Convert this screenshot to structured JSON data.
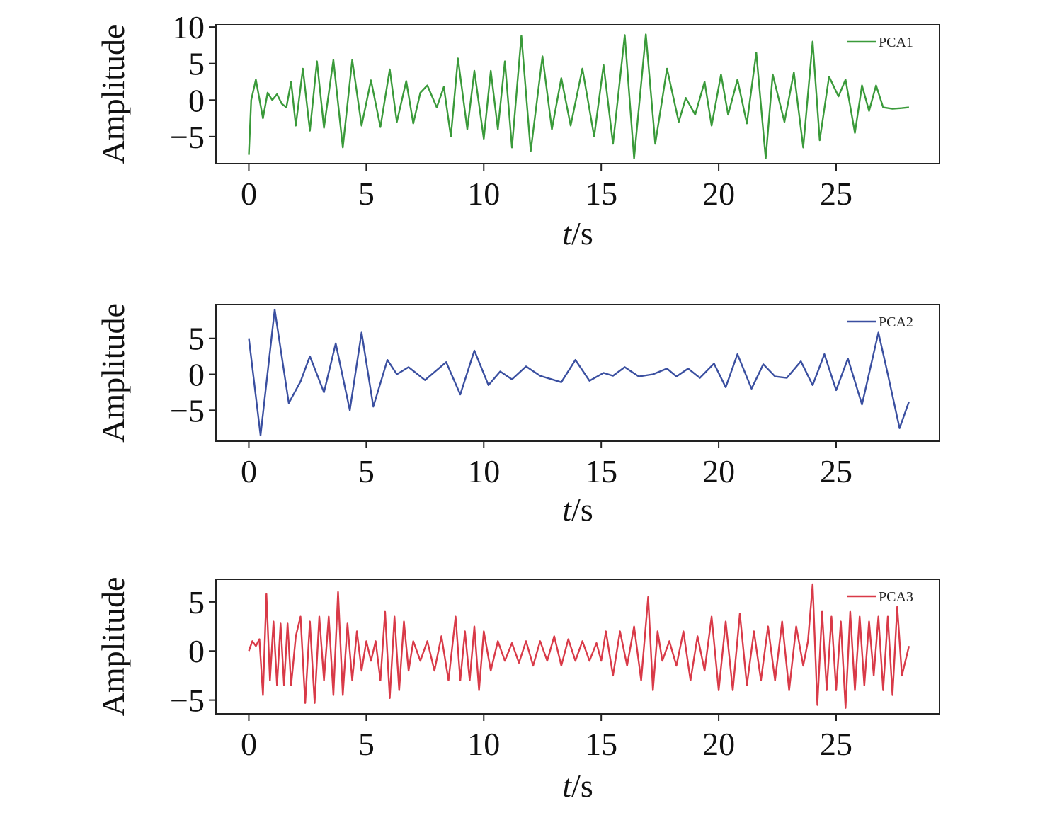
{
  "chart_data": [
    {
      "type": "line",
      "ylabel": "Amplitude",
      "xlabel": "t/s",
      "xlabel_italic_part": "t",
      "xlabel_rest": "/s",
      "xlim": [
        -1.4,
        29.4
      ],
      "ylim": [
        -8.7,
        10.3
      ],
      "xticks": [
        0,
        5,
        10,
        15,
        20,
        25
      ],
      "xtick_labels": [
        "0",
        "5",
        "10",
        "15",
        "20",
        "25"
      ],
      "yticks": [
        -5,
        0,
        5,
        10
      ],
      "ytick_labels": [
        "−5",
        "0",
        "5",
        "10"
      ],
      "legend": "top-right",
      "color": "#3a9a3a",
      "series": [
        {
          "name": "PCA1",
          "x": [
            0,
            0.1,
            0.3,
            0.6,
            0.8,
            1.0,
            1.2,
            1.4,
            1.6,
            1.8,
            2.0,
            2.3,
            2.6,
            2.9,
            3.2,
            3.6,
            4.0,
            4.4,
            4.8,
            5.2,
            5.6,
            6.0,
            6.3,
            6.7,
            7.0,
            7.3,
            7.6,
            8.0,
            8.3,
            8.6,
            8.9,
            9.3,
            9.6,
            10.0,
            10.3,
            10.6,
            10.9,
            11.2,
            11.6,
            12.0,
            12.5,
            12.9,
            13.3,
            13.7,
            14.2,
            14.7,
            15.1,
            15.5,
            16.0,
            16.4,
            16.9,
            17.3,
            17.8,
            18.3,
            18.6,
            19.0,
            19.4,
            19.7,
            20.1,
            20.4,
            20.8,
            21.2,
            21.6,
            22.0,
            22.3,
            22.8,
            23.2,
            23.6,
            24.0,
            24.3,
            24.7,
            25.1,
            25.4,
            25.8,
            26.1,
            26.4,
            26.7,
            27.0,
            27.4,
            27.8,
            28.1
          ],
          "y": [
            -7.5,
            0,
            2.8,
            -2.5,
            1.0,
            0,
            0.8,
            -0.5,
            -1.0,
            2.5,
            -3.5,
            4.3,
            -4.2,
            5.3,
            -3.8,
            5.5,
            -6.5,
            5.5,
            -3.5,
            2.7,
            -3.7,
            4.2,
            -3.0,
            2.6,
            -3.2,
            1.0,
            2.0,
            -1.0,
            1.8,
            -5.0,
            5.7,
            -4.0,
            4.0,
            -5.3,
            4.0,
            -4.0,
            5.3,
            -6.5,
            8.8,
            -7.0,
            6.0,
            -4.0,
            3.0,
            -3.5,
            4.3,
            -5.0,
            4.8,
            -6.0,
            8.9,
            -8.0,
            9.0,
            -6.0,
            4.3,
            -3.0,
            0.3,
            -2.0,
            2.5,
            -3.5,
            3.5,
            -2.0,
            2.8,
            -3.2,
            6.5,
            -8.0,
            3.5,
            -3.0,
            3.8,
            -6.5,
            8.0,
            -5.5,
            3.2,
            0.5,
            2.8,
            -4.5,
            2.0,
            -1.5,
            2.0,
            -1.0,
            -1.2,
            -1.1,
            -1.0
          ]
        }
      ]
    },
    {
      "type": "line",
      "ylabel": "Amplitude",
      "xlabel": "t/s",
      "xlabel_italic_part": "t",
      "xlabel_rest": "/s",
      "xlim": [
        -1.4,
        29.4
      ],
      "ylim": [
        -9.3,
        9.7
      ],
      "xticks": [
        0,
        5,
        10,
        15,
        20,
        25
      ],
      "xtick_labels": [
        "0",
        "5",
        "10",
        "15",
        "20",
        "25"
      ],
      "yticks": [
        -5,
        0,
        5
      ],
      "ytick_labels": [
        "−5",
        "0",
        "5"
      ],
      "legend": "top-right",
      "color": "#3a4fa0",
      "series": [
        {
          "name": "PCA2",
          "x": [
            0,
            0.5,
            1.1,
            1.7,
            2.2,
            2.6,
            3.2,
            3.7,
            4.3,
            4.8,
            5.3,
            5.9,
            6.3,
            6.8,
            7.5,
            8.4,
            9.0,
            9.6,
            10.2,
            10.7,
            11.2,
            11.8,
            12.4,
            13.3,
            13.9,
            14.5,
            15.1,
            15.5,
            16.0,
            16.6,
            17.2,
            17.8,
            18.2,
            18.7,
            19.2,
            19.8,
            20.3,
            20.8,
            21.4,
            21.9,
            22.4,
            22.9,
            23.5,
            24.0,
            24.5,
            25.0,
            25.5,
            26.1,
            26.8,
            27.2,
            27.7,
            28.1
          ],
          "y": [
            5.0,
            -8.5,
            9.0,
            -4.0,
            -1.0,
            2.5,
            -2.5,
            4.3,
            -5.0,
            5.8,
            -4.5,
            2.0,
            0.0,
            1.0,
            -0.8,
            1.7,
            -2.8,
            3.3,
            -1.5,
            0.4,
            -0.7,
            1.1,
            -0.2,
            -1.1,
            2.0,
            -0.9,
            0.2,
            -0.2,
            1.0,
            -0.3,
            0.0,
            0.8,
            -0.3,
            0.8,
            -0.5,
            1.5,
            -1.8,
            2.8,
            -2.0,
            1.4,
            -0.3,
            -0.5,
            1.8,
            -1.5,
            2.8,
            -2.2,
            2.2,
            -4.2,
            5.8,
            0.0,
            -7.5,
            -3.8
          ]
        }
      ]
    },
    {
      "type": "line",
      "ylabel": "Amplitude",
      "xlabel": "t/s",
      "xlabel_italic_part": "t",
      "xlabel_rest": "/s",
      "xlim": [
        -1.4,
        29.4
      ],
      "ylim": [
        -6.4,
        7.3
      ],
      "xticks": [
        0,
        5,
        10,
        15,
        20,
        25
      ],
      "xtick_labels": [
        "0",
        "5",
        "10",
        "15",
        "20",
        "25"
      ],
      "yticks": [
        -5,
        0,
        5
      ],
      "ytick_labels": [
        "−5",
        "0",
        "5"
      ],
      "legend": "top-right",
      "color": "#d93a48",
      "series": [
        {
          "name": "PCA3",
          "x": [
            0,
            0.15,
            0.3,
            0.45,
            0.6,
            0.75,
            0.9,
            1.05,
            1.2,
            1.35,
            1.5,
            1.65,
            1.8,
            2.0,
            2.2,
            2.4,
            2.6,
            2.8,
            3.0,
            3.2,
            3.4,
            3.6,
            3.8,
            4.0,
            4.2,
            4.4,
            4.6,
            4.8,
            5.0,
            5.2,
            5.4,
            5.6,
            5.8,
            6.0,
            6.2,
            6.4,
            6.6,
            6.8,
            7.0,
            7.3,
            7.6,
            7.9,
            8.2,
            8.5,
            8.8,
            9.0,
            9.2,
            9.4,
            9.6,
            9.8,
            10.0,
            10.3,
            10.6,
            10.9,
            11.2,
            11.5,
            11.8,
            12.1,
            12.4,
            12.7,
            13.0,
            13.3,
            13.6,
            13.9,
            14.2,
            14.5,
            14.8,
            15.0,
            15.2,
            15.5,
            15.8,
            16.1,
            16.4,
            16.7,
            17.0,
            17.2,
            17.4,
            17.6,
            17.9,
            18.2,
            18.5,
            18.8,
            19.1,
            19.4,
            19.7,
            20.0,
            20.3,
            20.6,
            20.9,
            21.2,
            21.5,
            21.8,
            22.1,
            22.4,
            22.7,
            23.0,
            23.3,
            23.6,
            23.8,
            24.0,
            24.2,
            24.4,
            24.6,
            24.8,
            25.0,
            25.2,
            25.4,
            25.6,
            25.8,
            26.0,
            26.2,
            26.4,
            26.6,
            26.8,
            27.0,
            27.2,
            27.4,
            27.6,
            27.8,
            28.1
          ],
          "y": [
            0,
            1.0,
            0.5,
            1.2,
            -4.5,
            5.8,
            -3.0,
            3.0,
            -3.5,
            2.8,
            -3.5,
            2.8,
            -3.5,
            1.5,
            3.5,
            -5.3,
            3.0,
            -5.3,
            3.5,
            -3.0,
            3.5,
            -4.5,
            6.0,
            -4.5,
            2.8,
            -3.0,
            2.0,
            -2.0,
            1.0,
            -1.0,
            1.0,
            -3.0,
            4.0,
            -4.8,
            3.5,
            -4.0,
            3.0,
            -2.0,
            1.0,
            -1.0,
            1.0,
            -2.0,
            1.5,
            -3.0,
            3.5,
            -3.0,
            2.0,
            -3.0,
            2.5,
            -4.0,
            2.0,
            -2.0,
            1.0,
            -1.0,
            0.8,
            -1.2,
            1.0,
            -1.5,
            1.0,
            -1.0,
            1.5,
            -1.5,
            1.2,
            -1.0,
            1.0,
            -1.0,
            0.8,
            -1.0,
            2.0,
            -2.5,
            2.0,
            -1.5,
            2.5,
            -3.0,
            5.5,
            -4.0,
            2.0,
            -1.0,
            1.0,
            -1.5,
            2.0,
            -3.0,
            1.5,
            -2.0,
            3.5,
            -4.0,
            3.0,
            -4.0,
            3.8,
            -3.5,
            2.0,
            -3.0,
            2.5,
            -3.0,
            3.0,
            -4.0,
            2.5,
            -1.5,
            1.0,
            6.8,
            -5.5,
            4.0,
            -4.0,
            3.5,
            -4.0,
            3.0,
            -5.8,
            4.0,
            -4.0,
            3.5,
            -3.5,
            3.0,
            -2.5,
            3.5,
            -4.0,
            3.5,
            -4.5,
            4.5,
            -2.5,
            0.5
          ]
        }
      ]
    }
  ]
}
